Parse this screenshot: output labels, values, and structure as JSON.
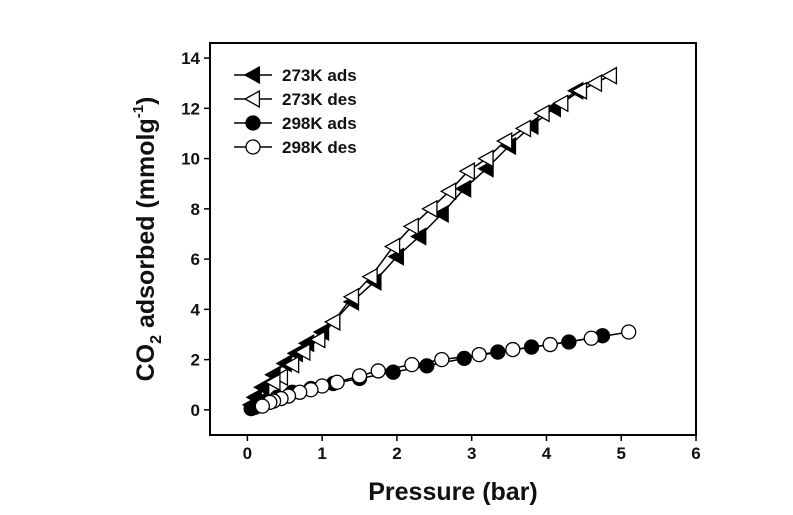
{
  "chart_data": {
    "type": "scatter",
    "xlabel": "Pressure (bar)",
    "ylabel_main": "CO",
    "ylabel_sub": "2",
    "ylabel_rest": " adsorbed (mmolg",
    "ylabel_sup": "-1",
    "ylabel_close": ")",
    "xlim": [
      -0.5,
      6
    ],
    "ylim": [
      -1,
      14.6
    ],
    "xticks": [
      0,
      1,
      2,
      3,
      4,
      5,
      6
    ],
    "yticks": [
      0,
      2,
      4,
      6,
      8,
      10,
      12,
      14
    ],
    "grid": false,
    "legend_position": "top-left",
    "series": [
      {
        "name": "273K ads",
        "marker": "triangle-left",
        "fill": "#000000",
        "x": [
          0.05,
          0.1,
          0.2,
          0.35,
          0.5,
          0.65,
          0.8,
          1.0,
          1.15,
          1.4,
          1.7,
          2.0,
          2.3,
          2.6,
          2.9,
          3.2,
          3.5,
          3.8,
          4.1,
          4.4
        ],
        "y": [
          0.2,
          0.5,
          0.9,
          1.4,
          1.85,
          2.25,
          2.65,
          3.1,
          3.5,
          4.3,
          5.1,
          6.1,
          6.9,
          7.8,
          8.8,
          9.6,
          10.5,
          11.3,
          12.0,
          12.7
        ]
      },
      {
        "name": "273K des",
        "marker": "triangle-left",
        "fill": "#ffffff",
        "x": [
          4.85,
          4.65,
          4.45,
          4.2,
          3.95,
          3.7,
          3.45,
          3.2,
          2.95,
          2.7,
          2.45,
          2.2,
          1.95,
          1.65,
          1.4,
          1.15,
          0.95,
          0.75,
          0.6,
          0.45,
          0.35
        ],
        "y": [
          13.3,
          13.0,
          12.7,
          12.2,
          11.8,
          11.2,
          10.7,
          10.0,
          9.5,
          8.7,
          8.0,
          7.3,
          6.5,
          5.3,
          4.5,
          3.5,
          2.8,
          2.3,
          1.8,
          1.3,
          1.1
        ]
      },
      {
        "name": "298K ads",
        "marker": "circle",
        "fill": "#000000",
        "x": [
          0.05,
          0.1,
          0.15,
          0.25,
          0.4,
          0.6,
          0.85,
          1.15,
          1.5,
          1.95,
          2.4,
          2.9,
          3.35,
          3.8,
          4.3,
          4.75
        ],
        "y": [
          0.05,
          0.1,
          0.25,
          0.35,
          0.5,
          0.7,
          0.85,
          1.05,
          1.25,
          1.5,
          1.75,
          2.05,
          2.3,
          2.5,
          2.7,
          2.95
        ]
      },
      {
        "name": "298K des",
        "marker": "circle",
        "fill": "#ffffff",
        "x": [
          5.1,
          4.6,
          4.05,
          3.55,
          3.1,
          2.6,
          2.2,
          1.75,
          1.5,
          1.2,
          1.0,
          0.85,
          0.7,
          0.55,
          0.45,
          0.35,
          0.3,
          0.2
        ],
        "y": [
          3.1,
          2.85,
          2.6,
          2.4,
          2.2,
          2.0,
          1.8,
          1.55,
          1.35,
          1.1,
          0.95,
          0.8,
          0.7,
          0.55,
          0.45,
          0.35,
          0.3,
          0.15
        ]
      }
    ]
  }
}
